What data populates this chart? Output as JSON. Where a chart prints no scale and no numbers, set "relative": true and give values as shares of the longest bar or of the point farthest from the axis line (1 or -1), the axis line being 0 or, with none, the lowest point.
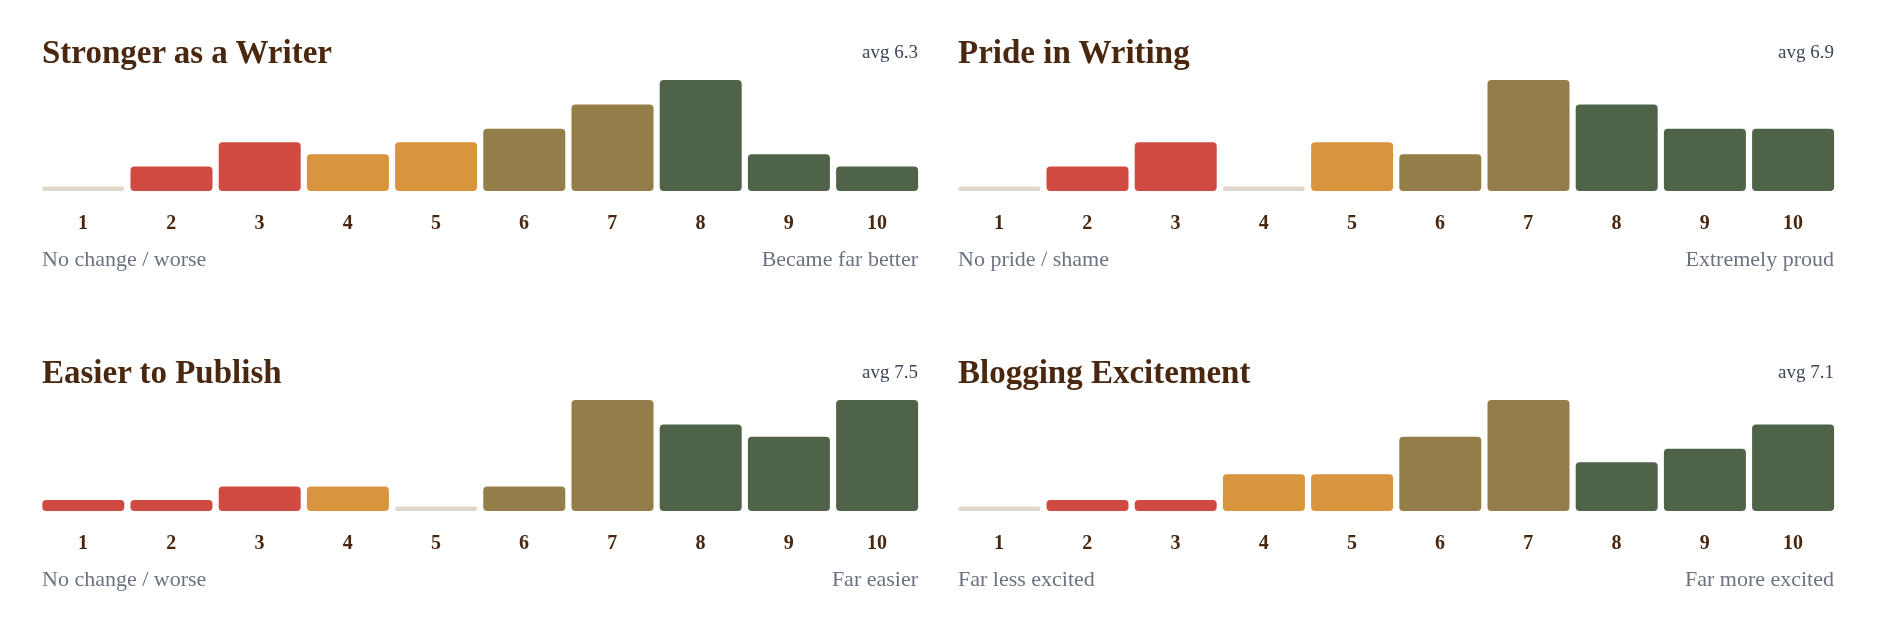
{
  "chart_data": [
    {
      "type": "bar",
      "title": "Stronger as a Writer",
      "subtitle": "avg 6.3",
      "categories": [
        "1",
        "2",
        "3",
        "4",
        "5",
        "6",
        "7",
        "8",
        "9",
        "10"
      ],
      "values": [
        0.04,
        0.22,
        0.44,
        0.33,
        0.44,
        0.56,
        0.78,
        1,
        0.33,
        0.22
      ],
      "colors": [
        "#e2d6ca",
        "#cf4a40",
        "#cf4a40",
        "#d8953e",
        "#d8953e",
        "#937e4a",
        "#937e4a",
        "#4f6349",
        "#4f6349",
        "#4f6349"
      ],
      "relative": true,
      "annotations": [
        "No change / worse",
        "Became far better"
      ]
    },
    {
      "type": "bar",
      "title": "Pride in Writing",
      "subtitle": "avg 6.9",
      "categories": [
        "1",
        "2",
        "3",
        "4",
        "5",
        "6",
        "7",
        "8",
        "9",
        "10"
      ],
      "values": [
        0.04,
        0.22,
        0.44,
        0.04,
        0.44,
        0.33,
        1,
        0.78,
        0.56,
        0.56
      ],
      "colors": [
        "#e2d6ca",
        "#cf4a40",
        "#cf4a40",
        "#e2d6ca",
        "#d8953e",
        "#937e4a",
        "#937e4a",
        "#4f6349",
        "#4f6349",
        "#4f6349"
      ],
      "relative": true,
      "annotations": [
        "No pride / shame",
        "Extremely proud"
      ]
    },
    {
      "type": "bar",
      "title": "Easier to Publish",
      "subtitle": "avg 7.5",
      "categories": [
        "1",
        "2",
        "3",
        "4",
        "5",
        "6",
        "7",
        "8",
        "9",
        "10"
      ],
      "values": [
        0.1,
        0.1,
        0.22,
        0.22,
        0.04,
        0.22,
        1,
        0.78,
        0.67,
        1
      ],
      "colors": [
        "#cf4a40",
        "#cf4a40",
        "#cf4a40",
        "#d8953e",
        "#e2d6ca",
        "#937e4a",
        "#937e4a",
        "#4f6349",
        "#4f6349",
        "#4f6349"
      ],
      "relative": true,
      "annotations": [
        "No change / worse",
        "Far easier"
      ]
    },
    {
      "type": "bar",
      "title": "Blogging Excitement",
      "subtitle": "avg 7.1",
      "categories": [
        "1",
        "2",
        "3",
        "4",
        "5",
        "6",
        "7",
        "8",
        "9",
        "10"
      ],
      "values": [
        0.04,
        0.1,
        0.1,
        0.33,
        0.33,
        0.67,
        1,
        0.44,
        0.56,
        0.78
      ],
      "colors": [
        "#e2d6ca",
        "#cf4a40",
        "#cf4a40",
        "#d8953e",
        "#d8953e",
        "#937e4a",
        "#937e4a",
        "#4f6349",
        "#4f6349",
        "#4f6349"
      ],
      "relative": true,
      "annotations": [
        "Far less excited",
        "Far more excited"
      ]
    }
  ]
}
